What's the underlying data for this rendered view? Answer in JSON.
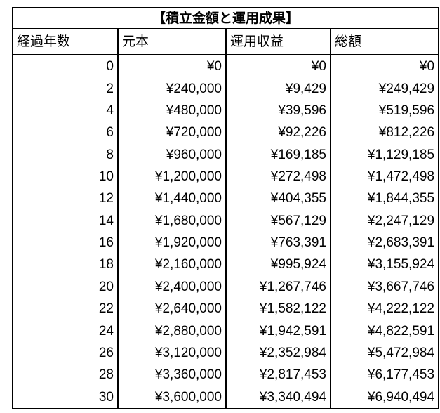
{
  "title": "【積立金額と運用成果】",
  "table": {
    "columns": [
      "経過年数",
      "元本",
      "運用収益",
      "総額"
    ],
    "rows": [
      [
        "0",
        "¥0",
        "¥0",
        "¥0"
      ],
      [
        "2",
        "¥240,000",
        "¥9,429",
        "¥249,429"
      ],
      [
        "4",
        "¥480,000",
        "¥39,596",
        "¥519,596"
      ],
      [
        "6",
        "¥720,000",
        "¥92,226",
        "¥812,226"
      ],
      [
        "8",
        "¥960,000",
        "¥169,185",
        "¥1,129,185"
      ],
      [
        "10",
        "¥1,200,000",
        "¥272,498",
        "¥1,472,498"
      ],
      [
        "12",
        "¥1,440,000",
        "¥404,355",
        "¥1,844,355"
      ],
      [
        "14",
        "¥1,680,000",
        "¥567,129",
        "¥2,247,129"
      ],
      [
        "16",
        "¥1,920,000",
        "¥763,391",
        "¥2,683,391"
      ],
      [
        "18",
        "¥2,160,000",
        "¥995,924",
        "¥3,155,924"
      ],
      [
        "20",
        "¥2,400,000",
        "¥1,267,746",
        "¥3,667,746"
      ],
      [
        "22",
        "¥2,640,000",
        "¥1,582,122",
        "¥4,222,122"
      ],
      [
        "24",
        "¥2,880,000",
        "¥1,942,591",
        "¥4,822,591"
      ],
      [
        "26",
        "¥3,120,000",
        "¥2,352,984",
        "¥5,472,984"
      ],
      [
        "28",
        "¥3,360,000",
        "¥2,817,453",
        "¥6,177,453"
      ],
      [
        "30",
        "¥3,600,000",
        "¥3,340,494",
        "¥6,940,494"
      ]
    ]
  },
  "chart_data": {
    "type": "table",
    "title": "積立金額と運用成果",
    "columns": [
      "経過年数",
      "元本",
      "運用収益",
      "総額"
    ],
    "years": [
      0,
      2,
      4,
      6,
      8,
      10,
      12,
      14,
      16,
      18,
      20,
      22,
      24,
      26,
      28,
      30
    ],
    "principal_yen": [
      0,
      240000,
      480000,
      720000,
      960000,
      1200000,
      1440000,
      1680000,
      1920000,
      2160000,
      2400000,
      2640000,
      2880000,
      3120000,
      3360000,
      3600000
    ],
    "investment_return_yen": [
      0,
      9429,
      39596,
      92226,
      169185,
      272498,
      404355,
      567129,
      763391,
      995924,
      1267746,
      1582122,
      1942591,
      2352984,
      2817453,
      3340494
    ],
    "total_yen": [
      0,
      249429,
      519596,
      812226,
      1129185,
      1472498,
      1844355,
      2247129,
      2683391,
      3155924,
      3667746,
      4222122,
      4822591,
      5472984,
      6177453,
      6940494
    ]
  },
  "colors": {
    "border": "#000000",
    "text": "#000000",
    "background": "#ffffff"
  }
}
